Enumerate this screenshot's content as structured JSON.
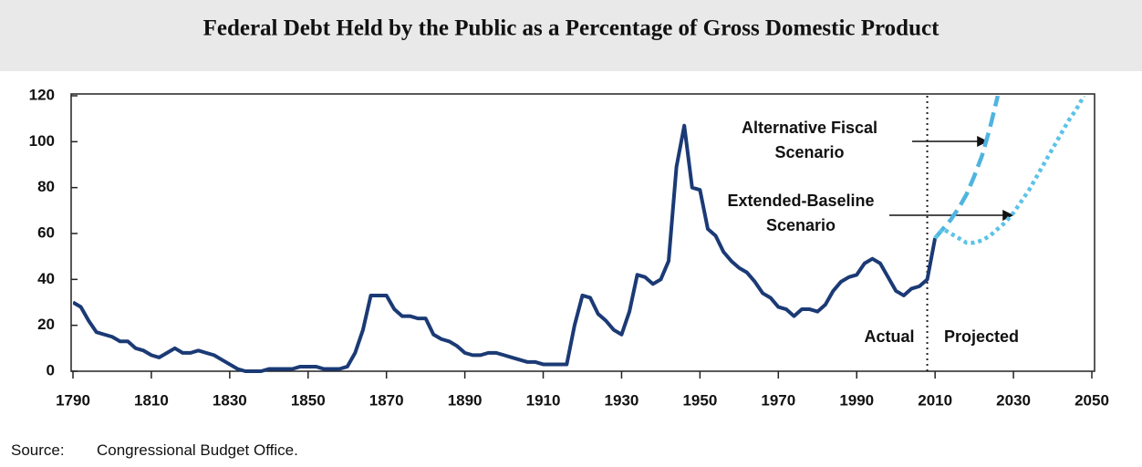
{
  "chart_data": {
    "type": "line",
    "title": "Federal Debt Held by the Public as a Percentage of Gross Domestic Product",
    "source_label": "Source:",
    "source": "Congressional Budget Office.",
    "annotations": [
      "Actual",
      "Projected"
    ],
    "divider": 2008,
    "x": [
      1790,
      1792,
      1794,
      1796,
      1798,
      1800,
      1802,
      1804,
      1806,
      1808,
      1810,
      1812,
      1814,
      1816,
      1818,
      1820,
      1822,
      1824,
      1826,
      1828,
      1830,
      1832,
      1834,
      1836,
      1838,
      1840,
      1842,
      1844,
      1846,
      1848,
      1850,
      1852,
      1854,
      1856,
      1858,
      1860,
      1862,
      1864,
      1866,
      1868,
      1870,
      1872,
      1874,
      1876,
      1878,
      1880,
      1882,
      1884,
      1886,
      1888,
      1890,
      1892,
      1894,
      1896,
      1898,
      1900,
      1902,
      1904,
      1906,
      1908,
      1910,
      1912,
      1914,
      1916,
      1918,
      1920,
      1922,
      1924,
      1926,
      1928,
      1930,
      1932,
      1934,
      1936,
      1938,
      1940,
      1942,
      1944,
      1946,
      1948,
      1950,
      1952,
      1954,
      1956,
      1958,
      1960,
      1962,
      1964,
      1966,
      1968,
      1970,
      1972,
      1974,
      1976,
      1978,
      1980,
      1982,
      1984,
      1986,
      1988,
      1990,
      1992,
      1994,
      1996,
      1998,
      2000,
      2002,
      2004,
      2006,
      2008,
      2010,
      2012,
      2014,
      2016,
      2018,
      2020,
      2022,
      2024,
      2026,
      2028,
      2030,
      2032,
      2034,
      2036,
      2038,
      2040,
      2042,
      2044,
      2046,
      2048,
      2050
    ],
    "series": [
      {
        "name": "Actual",
        "color": "#1b3a75",
        "dash": "solid",
        "values": [
          30,
          28,
          22,
          17,
          16,
          15,
          13,
          13,
          10,
          9,
          7,
          6,
          8,
          10,
          8,
          8,
          9,
          8,
          7,
          5,
          3,
          1,
          0,
          0,
          0,
          1,
          1,
          1,
          1,
          2,
          2,
          2,
          1,
          1,
          1,
          2,
          8,
          18,
          33,
          33,
          33,
          27,
          24,
          24,
          23,
          23,
          16,
          14,
          13,
          11,
          8,
          7,
          7,
          8,
          8,
          7,
          6,
          5,
          4,
          4,
          3,
          3,
          3,
          3,
          20,
          33,
          32,
          25,
          22,
          18,
          16,
          26,
          42,
          41,
          38,
          40,
          48,
          89,
          107,
          80,
          79,
          62,
          59,
          52,
          48,
          45,
          43,
          39,
          34,
          32,
          28,
          27,
          24,
          27,
          27,
          26,
          29,
          35,
          39,
          41,
          42,
          47,
          49,
          47,
          41,
          35,
          33,
          36,
          37,
          40,
          58,
          null,
          null,
          null,
          null,
          null,
          null,
          null,
          null,
          null,
          null,
          null,
          null,
          null,
          null,
          null,
          null,
          null,
          null,
          null,
          null
        ]
      },
      {
        "name": "Alternative Fiscal Scenario",
        "color": "#4fb4e0",
        "dash": "dashed",
        "values": [
          null,
          null,
          null,
          null,
          null,
          null,
          null,
          null,
          null,
          null,
          null,
          null,
          null,
          null,
          null,
          null,
          null,
          null,
          null,
          null,
          null,
          null,
          null,
          null,
          null,
          null,
          null,
          null,
          null,
          null,
          null,
          null,
          null,
          null,
          null,
          null,
          null,
          null,
          null,
          null,
          null,
          null,
          null,
          null,
          null,
          null,
          null,
          null,
          null,
          null,
          null,
          null,
          null,
          null,
          null,
          null,
          null,
          null,
          null,
          null,
          null,
          null,
          null,
          null,
          null,
          null,
          null,
          null,
          null,
          null,
          null,
          null,
          null,
          null,
          null,
          null,
          null,
          null,
          null,
          null,
          null,
          null,
          null,
          null,
          null,
          null,
          null,
          null,
          null,
          null,
          null,
          null,
          null,
          null,
          null,
          null,
          null,
          null,
          null,
          null,
          null,
          null,
          null,
          null,
          null,
          null,
          null,
          null,
          null,
          null,
          58,
          62,
          66,
          71,
          77,
          85,
          94,
          106,
          120,
          null,
          null,
          null,
          null,
          null,
          null,
          null,
          null,
          null,
          null,
          null,
          null
        ]
      },
      {
        "name": "Extended-Baseline Scenario",
        "color": "#5cc2e8",
        "dash": "dotted",
        "values": [
          null,
          null,
          null,
          null,
          null,
          null,
          null,
          null,
          null,
          null,
          null,
          null,
          null,
          null,
          null,
          null,
          null,
          null,
          null,
          null,
          null,
          null,
          null,
          null,
          null,
          null,
          null,
          null,
          null,
          null,
          null,
          null,
          null,
          null,
          null,
          null,
          null,
          null,
          null,
          null,
          null,
          null,
          null,
          null,
          null,
          null,
          null,
          null,
          null,
          null,
          null,
          null,
          null,
          null,
          null,
          null,
          null,
          null,
          null,
          null,
          null,
          null,
          null,
          null,
          null,
          null,
          null,
          null,
          null,
          null,
          null,
          null,
          null,
          null,
          null,
          null,
          null,
          null,
          null,
          null,
          null,
          null,
          null,
          null,
          null,
          null,
          null,
          null,
          null,
          null,
          null,
          null,
          null,
          null,
          null,
          null,
          null,
          null,
          null,
          null,
          null,
          null,
          null,
          null,
          null,
          null,
          null,
          null,
          null,
          null,
          58,
          62,
          60,
          58,
          56,
          56,
          57,
          59,
          62,
          65,
          69,
          74,
          79,
          85,
          91,
          97,
          103,
          109,
          114,
          120,
          null
        ]
      }
    ],
    "xlim": [
      1790,
      2050
    ],
    "xticks": [
      1790,
      1810,
      1830,
      1850,
      1870,
      1890,
      1910,
      1930,
      1950,
      1970,
      1990,
      2010,
      2030,
      2050
    ],
    "ylim": [
      0,
      120
    ],
    "yticks": [
      0,
      20,
      40,
      60,
      80,
      100,
      120
    ]
  }
}
